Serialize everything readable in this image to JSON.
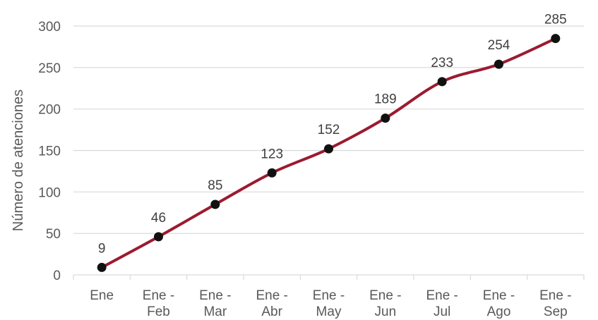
{
  "chart_data": {
    "type": "line",
    "categories": [
      [
        "Ene"
      ],
      [
        "Ene -",
        "Feb"
      ],
      [
        "Ene -",
        "Mar"
      ],
      [
        "Ene -",
        "Abr"
      ],
      [
        "Ene -",
        "May"
      ],
      [
        "Ene -",
        "Jun"
      ],
      [
        "Ene -",
        "Jul"
      ],
      [
        "Ene -",
        "Ago"
      ],
      [
        "Ene -",
        "Sep"
      ]
    ],
    "series": [
      {
        "values": [
          9,
          46,
          85,
          123,
          152,
          189,
          233,
          254,
          285
        ]
      }
    ],
    "title": "",
    "xlabel": "",
    "ylabel": "Número de atenciones",
    "ylim": [
      0,
      300
    ],
    "yticks": [
      0,
      50,
      100,
      150,
      200,
      250,
      300
    ],
    "grid": true,
    "line_color": "#9b1b30",
    "marker_color": "#111111",
    "grid_color": "#d9d9d9",
    "data_labels": true
  }
}
